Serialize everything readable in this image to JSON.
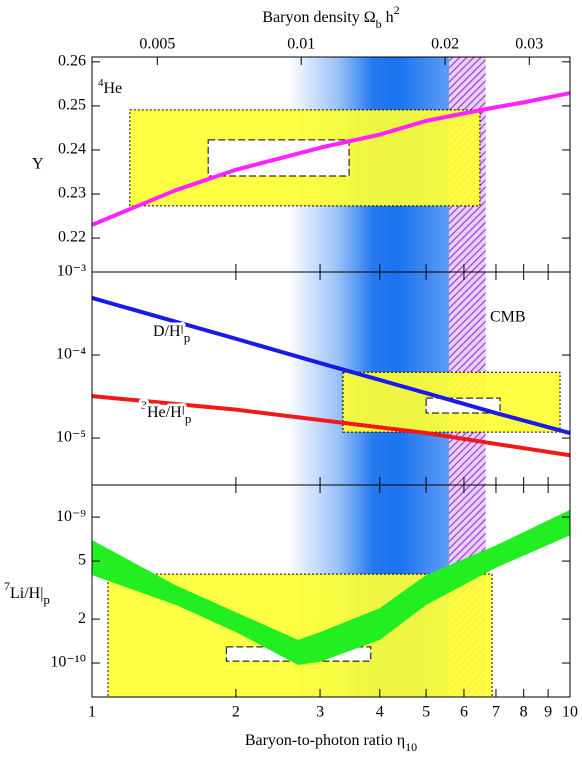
{
  "chart_data": {
    "type": "panels",
    "xlabel": [
      "Baryon-to-photon ratio η",
      "10"
    ],
    "xlim": [
      1,
      10
    ],
    "xticks": [
      1,
      2,
      3,
      4,
      5,
      6,
      7,
      8,
      9,
      10
    ],
    "xlog": true,
    "x2label": [
      "Baryon density Ω",
      "b",
      " h",
      "2"
    ],
    "x2lim": [
      0.00365,
      0.0365
    ],
    "x2ticks": [
      0.005,
      0.01,
      0.02,
      0.03
    ],
    "concordance": {
      "x": [
        2.57,
        5.83
      ],
      "color": "#1a73f0"
    },
    "cmb": {
      "name": "CMB",
      "x": [
        5.58,
        6.66
      ],
      "color": "#9b30d9"
    },
    "panels": [
      {
        "ylabel": [
          "Y"
        ],
        "label": [
          "4",
          "He"
        ],
        "ylog": false,
        "ylim": [
          0.2123,
          0.2611
        ],
        "yticks": [
          0.22,
          0.23,
          0.24,
          0.25,
          0.26
        ],
        "boxes": [
          {
            "x": [
              1.2,
              6.48
            ],
            "y": [
              0.2273,
              0.2491
            ],
            "color": "#ffff33"
          },
          {
            "x": [
              1.75,
              3.45
            ],
            "y": [
              0.2341,
              0.2423
            ],
            "color": "#ffffff"
          }
        ],
        "series": [
          {
            "color": "#ff22ff",
            "x": [
              1,
              1.5,
              2,
              3,
              4,
              5,
              6,
              7,
              8,
              10
            ],
            "values": [
              0.223,
              0.2309,
              0.2355,
              0.2405,
              0.2435,
              0.2466,
              0.2483,
              0.2497,
              0.2508,
              0.2529
            ]
          }
        ]
      },
      {
        "ylog": true,
        "ylim": [
          2.72e-06,
          0.001
        ],
        "yticks": [
          {
            "value": 0.001,
            "label": "10⁻³"
          },
          {
            "value": 0.0001,
            "label": "10⁻⁴"
          },
          {
            "value": 1e-05,
            "label": "10⁻⁵"
          }
        ],
        "boxes": [
          {
            "x": [
              3.35,
              9.53
            ],
            "y": [
              1.18e-05,
              6.2e-05
            ],
            "color": "#ffff33"
          },
          {
            "x": [
              5.0,
              7.14
            ],
            "y": [
              2e-05,
              3.03e-05
            ],
            "color": "#ffffff"
          }
        ],
        "series": [
          {
            "name": [
              "D/H|",
              "p"
            ],
            "color": "#1a1ae6",
            "x": [
              1,
              2,
              3,
              5,
              7,
              10
            ],
            "values": [
              0.000487,
              0.000157,
              8e-05,
              3.48e-05,
              2e-05,
              1.15e-05
            ]
          },
          {
            "name": [
              "3",
              "He/H|",
              "p"
            ],
            "color": "#f01818",
            "x": [
              1,
              2,
              3,
              5,
              7,
              10
            ],
            "values": [
              3.2e-05,
              2.2e-05,
              1.65e-05,
              1.15e-05,
              8.5e-06,
              6.2e-06
            ]
          }
        ]
      },
      {
        "ylabel": [
          "7",
          "Li/H|",
          "p"
        ],
        "ylog": true,
        "ylim": [
          5.85e-11,
          1.66e-09
        ],
        "yticks": [
          {
            "value": 1e-09,
            "label": "10⁻⁹"
          },
          {
            "value": 5e-10,
            "label": "5"
          },
          {
            "value": 2e-10,
            "label": "2"
          },
          {
            "value": 1e-10,
            "label": "10⁻¹⁰"
          }
        ],
        "boxes": [
          {
            "x": [
              1.08,
              6.87
            ],
            "y": [
              5.85e-11,
              4.07e-10
            ],
            "color": "#ffff33"
          },
          {
            "x": [
              1.91,
              3.83
            ],
            "y": [
              1.03e-10,
              1.29e-10
            ],
            "color": "#ffffff"
          }
        ],
        "series": [
          {
            "color": "#22ee22",
            "x": [
              1,
              1.5,
              2,
              2.7,
              3,
              4,
              5,
              7,
              10
            ],
            "upper": [
              6.95e-10,
              3.4e-10,
              2.23e-10,
              1.44e-10,
              1.63e-10,
              2.38e-10,
              4e-10,
              6.4e-10,
              1.12e-09
            ],
            "lower": [
              4e-10,
              2.5e-10,
              1.63e-10,
              9.7e-11,
              1.02e-10,
              1.44e-10,
              2.5e-10,
              4.5e-10,
              7.5e-10
            ]
          }
        ]
      }
    ]
  }
}
